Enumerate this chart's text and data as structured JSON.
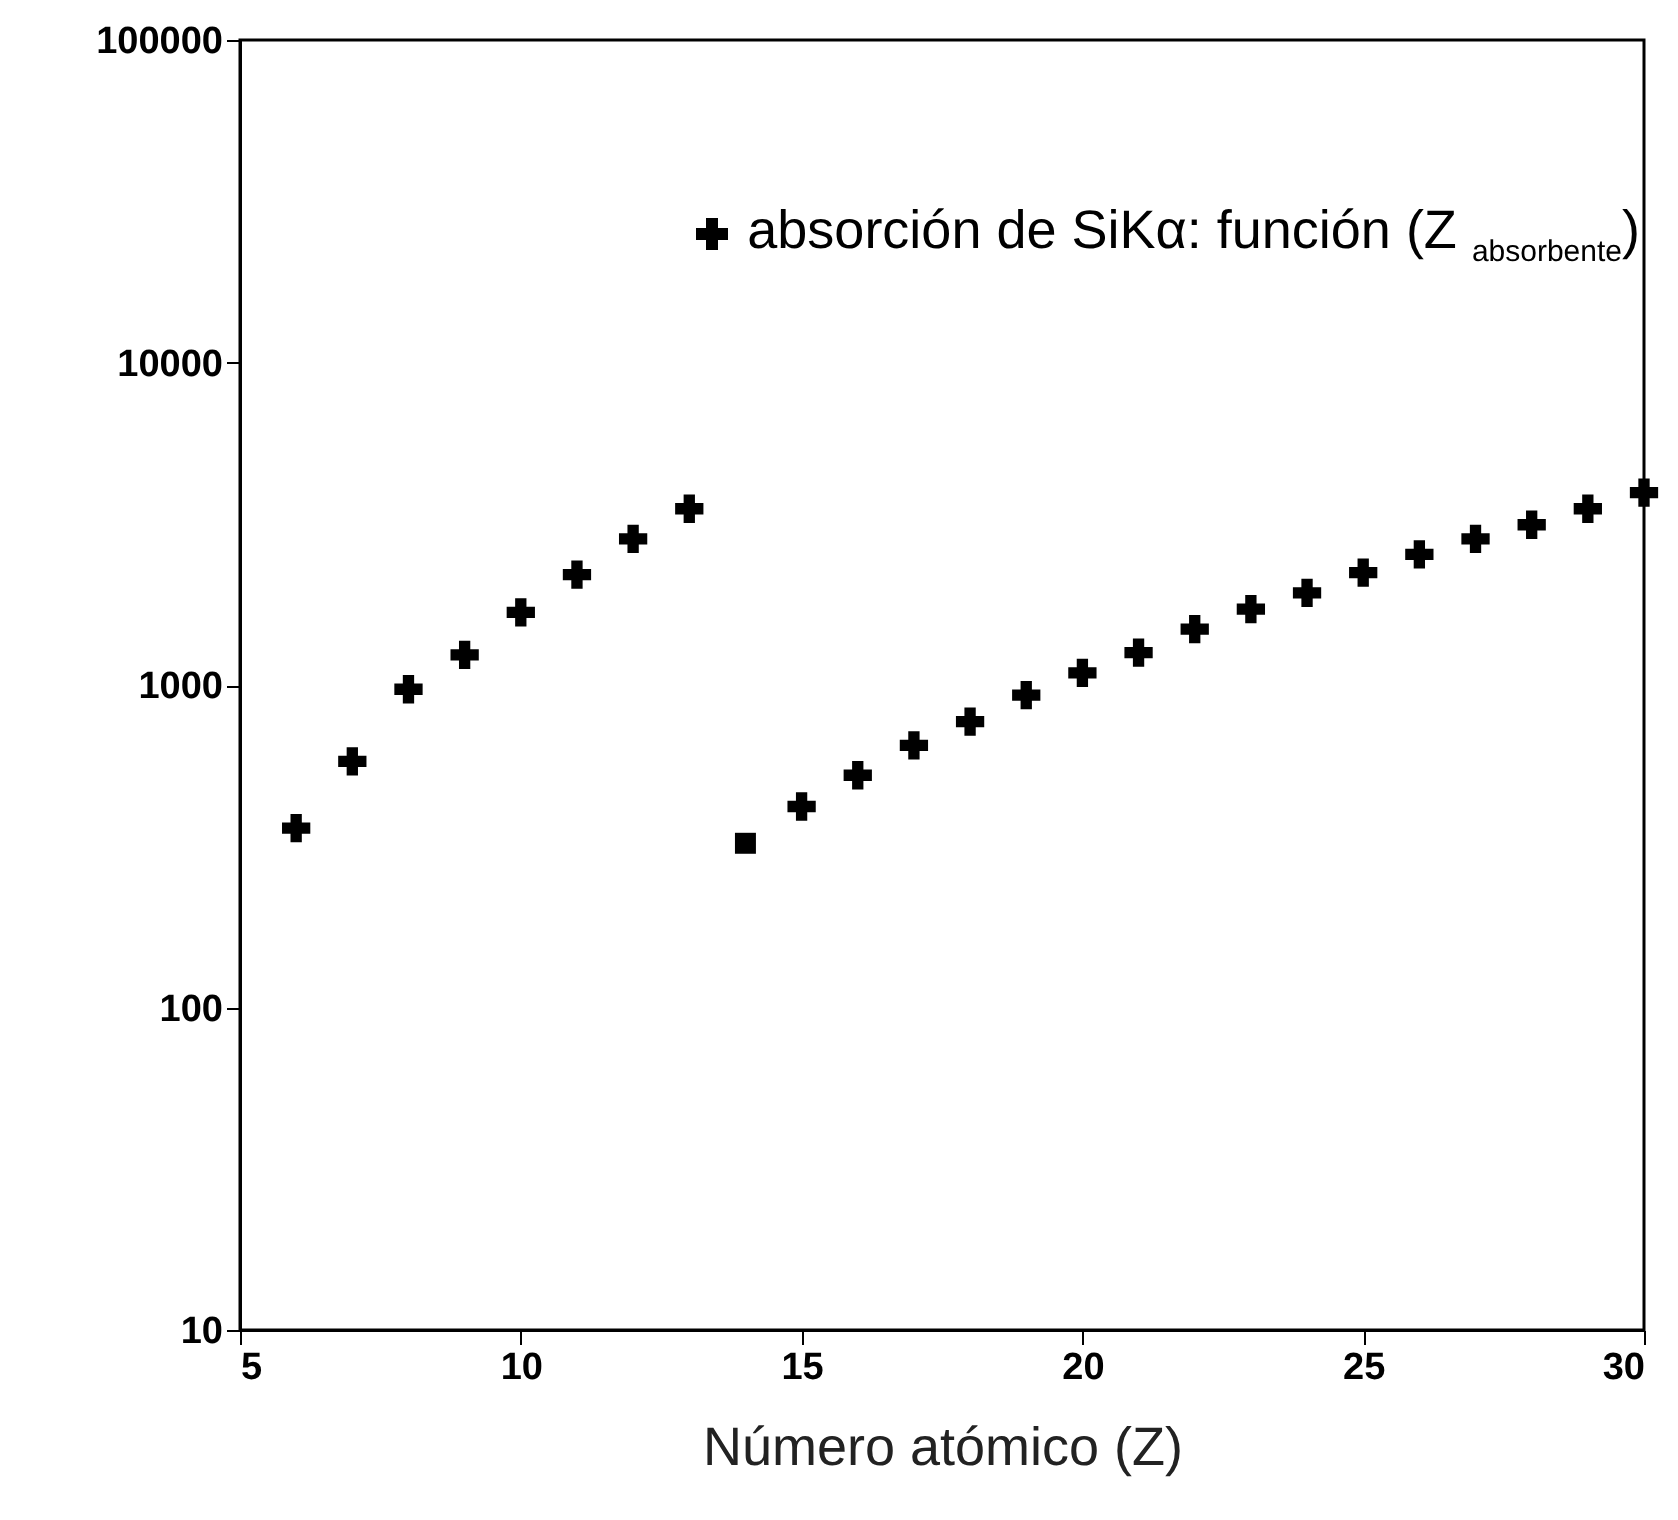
{
  "chart_data": {
    "type": "scatter",
    "xlabel": "Número atómico (Z)",
    "xlim": [
      5,
      30
    ],
    "xticks": [
      5,
      10,
      15,
      20,
      25,
      30
    ],
    "ylim": [
      10,
      100000
    ],
    "yticks": [
      10,
      100,
      1000,
      10000,
      100000
    ],
    "log": "y",
    "grid": false,
    "legend": "top right",
    "marker": "cross",
    "series": [
      {
        "name": "absorción de SiKα: función (Z $_{absorbente}$)",
        "color": "#000000",
        "x": [
          6,
          7,
          8,
          9,
          10,
          11,
          12,
          13,
          15,
          16,
          17,
          18,
          19,
          20,
          21,
          22,
          23,
          24,
          25,
          26,
          27,
          28,
          29,
          30
        ],
        "values": [
          360,
          580,
          970,
          1240,
          1680,
          2200,
          2840,
          3520,
          420,
          525,
          650,
          770,
          930,
          1090,
          1260,
          1490,
          1720,
          1930,
          2230,
          2540,
          2840,
          3140,
          3520,
          3950
        ]
      },
      {
        "color": "#000000",
        "marker": "square",
        "x": [
          14
        ],
        "values": [
          323
        ]
      }
    ]
  }
}
